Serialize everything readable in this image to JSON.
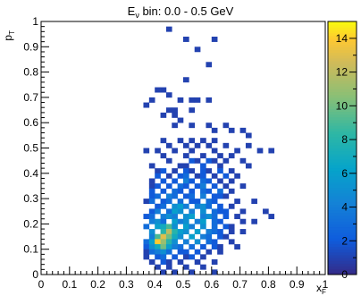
{
  "chart_data": {
    "type": "heatmap",
    "title_main": "E",
    "title_sub": "ν",
    "title_rest": " bin:  0.0 -  0.5 GeV",
    "xlabel_main": "x",
    "xlabel_sub": "F",
    "ylabel_main": "p",
    "ylabel_sub": "T",
    "xlim": [
      0,
      1
    ],
    "ylim": [
      0,
      1
    ],
    "x_ticks": [
      "0",
      "0.1",
      "0.2",
      "0.3",
      "0.4",
      "0.5",
      "0.6",
      "0.7",
      "0.8",
      "0.9",
      "1"
    ],
    "y_ticks": [
      "0",
      "0.1",
      "0.2",
      "0.3",
      "0.4",
      "0.5",
      "0.6",
      "0.7",
      "0.8",
      "0.9",
      "1"
    ],
    "z_range": [
      0,
      15
    ],
    "z_ticks": [
      "0",
      "2",
      "4",
      "6",
      "8",
      "10",
      "12",
      "14"
    ],
    "bin_size": 0.02,
    "cells": [
      [
        0.44,
        0.96,
        1
      ],
      [
        0.5,
        0.92,
        1
      ],
      [
        0.6,
        0.92,
        1
      ],
      [
        0.54,
        0.88,
        1
      ],
      [
        0.58,
        0.82,
        1
      ],
      [
        0.5,
        0.76,
        1
      ],
      [
        0.4,
        0.72,
        1
      ],
      [
        0.42,
        0.72,
        1
      ],
      [
        0.44,
        0.7,
        1
      ],
      [
        0.38,
        0.68,
        1
      ],
      [
        0.48,
        0.68,
        1
      ],
      [
        0.52,
        0.68,
        1
      ],
      [
        0.54,
        0.68,
        1
      ],
      [
        0.58,
        0.68,
        1
      ],
      [
        0.36,
        0.66,
        1
      ],
      [
        0.44,
        0.64,
        1
      ],
      [
        0.46,
        0.64,
        1
      ],
      [
        0.52,
        0.64,
        1
      ],
      [
        0.42,
        0.62,
        1
      ],
      [
        0.46,
        0.62,
        1
      ],
      [
        0.48,
        0.6,
        1
      ],
      [
        0.46,
        0.58,
        1
      ],
      [
        0.52,
        0.58,
        1
      ],
      [
        0.58,
        0.58,
        1
      ],
      [
        0.64,
        0.58,
        1
      ],
      [
        0.6,
        0.56,
        1
      ],
      [
        0.66,
        0.56,
        1
      ],
      [
        0.7,
        0.56,
        1
      ],
      [
        0.72,
        0.54,
        1
      ],
      [
        0.42,
        0.52,
        1
      ],
      [
        0.48,
        0.52,
        1
      ],
      [
        0.52,
        0.52,
        1
      ],
      [
        0.56,
        0.52,
        1
      ],
      [
        0.6,
        0.52,
        1
      ],
      [
        0.44,
        0.5,
        1
      ],
      [
        0.5,
        0.5,
        1
      ],
      [
        0.54,
        0.5,
        1
      ],
      [
        0.58,
        0.5,
        1
      ],
      [
        0.64,
        0.5,
        1
      ],
      [
        0.72,
        0.5,
        1
      ],
      [
        0.36,
        0.48,
        1
      ],
      [
        0.4,
        0.48,
        1
      ],
      [
        0.46,
        0.48,
        1
      ],
      [
        0.52,
        0.48,
        1
      ],
      [
        0.6,
        0.48,
        1
      ],
      [
        0.68,
        0.48,
        1
      ],
      [
        0.76,
        0.48,
        1
      ],
      [
        0.8,
        0.48,
        1
      ],
      [
        0.42,
        0.46,
        1
      ],
      [
        0.5,
        0.46,
        1
      ],
      [
        0.56,
        0.46,
        1
      ],
      [
        0.62,
        0.46,
        1
      ],
      [
        0.66,
        0.46,
        1
      ],
      [
        0.44,
        0.44,
        1
      ],
      [
        0.52,
        0.44,
        2
      ],
      [
        0.54,
        0.44,
        1
      ],
      [
        0.58,
        0.44,
        2
      ],
      [
        0.6,
        0.44,
        1
      ],
      [
        0.64,
        0.44,
        1
      ],
      [
        0.7,
        0.44,
        1
      ],
      [
        0.38,
        0.42,
        1
      ],
      [
        0.48,
        0.42,
        1
      ],
      [
        0.5,
        0.42,
        1
      ],
      [
        0.56,
        0.42,
        2
      ],
      [
        0.62,
        0.42,
        1
      ],
      [
        0.72,
        0.42,
        1
      ],
      [
        0.4,
        0.4,
        1
      ],
      [
        0.42,
        0.4,
        2
      ],
      [
        0.46,
        0.4,
        1
      ],
      [
        0.5,
        0.4,
        2
      ],
      [
        0.52,
        0.4,
        1
      ],
      [
        0.56,
        0.4,
        2
      ],
      [
        0.58,
        0.4,
        1
      ],
      [
        0.62,
        0.4,
        2
      ],
      [
        0.66,
        0.4,
        1
      ],
      [
        0.4,
        0.38,
        2
      ],
      [
        0.44,
        0.38,
        1
      ],
      [
        0.48,
        0.38,
        2
      ],
      [
        0.5,
        0.38,
        3
      ],
      [
        0.54,
        0.38,
        1
      ],
      [
        0.56,
        0.38,
        2
      ],
      [
        0.6,
        0.38,
        1
      ],
      [
        0.64,
        0.38,
        2
      ],
      [
        0.68,
        0.38,
        1
      ],
      [
        0.38,
        0.36,
        1
      ],
      [
        0.42,
        0.36,
        2
      ],
      [
        0.46,
        0.36,
        2
      ],
      [
        0.5,
        0.36,
        4
      ],
      [
        0.52,
        0.36,
        2
      ],
      [
        0.56,
        0.36,
        3
      ],
      [
        0.58,
        0.36,
        2
      ],
      [
        0.62,
        0.36,
        1
      ],
      [
        0.66,
        0.36,
        1
      ],
      [
        0.38,
        0.34,
        1
      ],
      [
        0.4,
        0.34,
        2
      ],
      [
        0.44,
        0.34,
        2
      ],
      [
        0.48,
        0.34,
        3
      ],
      [
        0.5,
        0.34,
        2
      ],
      [
        0.54,
        0.34,
        2
      ],
      [
        0.56,
        0.34,
        4
      ],
      [
        0.6,
        0.34,
        2
      ],
      [
        0.64,
        0.34,
        1
      ],
      [
        0.7,
        0.34,
        1
      ],
      [
        0.38,
        0.32,
        2
      ],
      [
        0.42,
        0.32,
        2
      ],
      [
        0.46,
        0.32,
        3
      ],
      [
        0.48,
        0.32,
        2
      ],
      [
        0.52,
        0.32,
        2
      ],
      [
        0.56,
        0.32,
        3
      ],
      [
        0.58,
        0.32,
        2
      ],
      [
        0.62,
        0.32,
        3
      ],
      [
        0.66,
        0.32,
        1
      ],
      [
        0.38,
        0.3,
        2
      ],
      [
        0.4,
        0.3,
        3
      ],
      [
        0.44,
        0.3,
        4
      ],
      [
        0.46,
        0.3,
        3
      ],
      [
        0.5,
        0.3,
        2
      ],
      [
        0.52,
        0.3,
        3
      ],
      [
        0.56,
        0.3,
        4
      ],
      [
        0.6,
        0.3,
        2
      ],
      [
        0.62,
        0.3,
        2
      ],
      [
        0.64,
        0.3,
        1
      ],
      [
        0.36,
        0.28,
        1
      ],
      [
        0.38,
        0.28,
        3
      ],
      [
        0.42,
        0.28,
        2
      ],
      [
        0.44,
        0.28,
        3
      ],
      [
        0.48,
        0.28,
        3
      ],
      [
        0.52,
        0.28,
        2
      ],
      [
        0.54,
        0.28,
        2
      ],
      [
        0.58,
        0.28,
        3
      ],
      [
        0.6,
        0.28,
        2
      ],
      [
        0.68,
        0.28,
        1
      ],
      [
        0.74,
        0.28,
        1
      ],
      [
        0.4,
        0.26,
        2
      ],
      [
        0.42,
        0.26,
        3
      ],
      [
        0.46,
        0.26,
        5
      ],
      [
        0.48,
        0.26,
        6
      ],
      [
        0.5,
        0.26,
        4
      ],
      [
        0.54,
        0.26,
        4
      ],
      [
        0.56,
        0.26,
        5
      ],
      [
        0.58,
        0.26,
        3
      ],
      [
        0.62,
        0.26,
        2
      ],
      [
        0.66,
        0.26,
        1
      ],
      [
        0.38,
        0.24,
        2
      ],
      [
        0.4,
        0.24,
        4
      ],
      [
        0.44,
        0.24,
        3
      ],
      [
        0.46,
        0.24,
        6
      ],
      [
        0.48,
        0.24,
        5
      ],
      [
        0.52,
        0.24,
        4
      ],
      [
        0.56,
        0.24,
        5
      ],
      [
        0.6,
        0.24,
        3
      ],
      [
        0.62,
        0.24,
        2
      ],
      [
        0.64,
        0.24,
        2
      ],
      [
        0.7,
        0.24,
        1
      ],
      [
        0.78,
        0.24,
        1
      ],
      [
        0.36,
        0.22,
        2
      ],
      [
        0.38,
        0.22,
        3
      ],
      [
        0.42,
        0.22,
        4
      ],
      [
        0.44,
        0.22,
        5
      ],
      [
        0.46,
        0.22,
        4
      ],
      [
        0.5,
        0.22,
        5
      ],
      [
        0.52,
        0.22,
        6
      ],
      [
        0.56,
        0.22,
        4
      ],
      [
        0.58,
        0.22,
        5
      ],
      [
        0.6,
        0.22,
        3
      ],
      [
        0.64,
        0.22,
        2
      ],
      [
        0.68,
        0.22,
        1
      ],
      [
        0.8,
        0.22,
        1
      ],
      [
        0.38,
        0.2,
        4
      ],
      [
        0.4,
        0.2,
        5
      ],
      [
        0.42,
        0.2,
        3
      ],
      [
        0.46,
        0.2,
        6
      ],
      [
        0.48,
        0.2,
        4
      ],
      [
        0.5,
        0.2,
        5
      ],
      [
        0.54,
        0.2,
        4
      ],
      [
        0.56,
        0.2,
        6
      ],
      [
        0.6,
        0.2,
        3
      ],
      [
        0.62,
        0.2,
        2
      ],
      [
        0.7,
        0.2,
        1
      ],
      [
        0.74,
        0.2,
        1
      ],
      [
        0.36,
        0.18,
        3
      ],
      [
        0.4,
        0.18,
        6
      ],
      [
        0.42,
        0.18,
        7
      ],
      [
        0.44,
        0.18,
        9
      ],
      [
        0.46,
        0.18,
        5
      ],
      [
        0.5,
        0.18,
        6
      ],
      [
        0.52,
        0.18,
        4
      ],
      [
        0.56,
        0.18,
        5
      ],
      [
        0.6,
        0.18,
        3
      ],
      [
        0.64,
        0.18,
        2
      ],
      [
        0.66,
        0.18,
        1
      ],
      [
        0.38,
        0.16,
        5
      ],
      [
        0.42,
        0.16,
        8
      ],
      [
        0.44,
        0.16,
        12
      ],
      [
        0.46,
        0.16,
        8
      ],
      [
        0.48,
        0.16,
        6
      ],
      [
        0.5,
        0.16,
        5
      ],
      [
        0.54,
        0.16,
        6
      ],
      [
        0.58,
        0.16,
        4
      ],
      [
        0.6,
        0.16,
        3
      ],
      [
        0.62,
        0.16,
        2
      ],
      [
        0.66,
        0.16,
        1
      ],
      [
        0.7,
        0.16,
        1
      ],
      [
        0.38,
        0.14,
        4
      ],
      [
        0.4,
        0.14,
        9
      ],
      [
        0.42,
        0.14,
        13
      ],
      [
        0.44,
        0.14,
        10
      ],
      [
        0.46,
        0.14,
        7
      ],
      [
        0.48,
        0.14,
        5
      ],
      [
        0.52,
        0.14,
        6
      ],
      [
        0.56,
        0.14,
        4
      ],
      [
        0.58,
        0.14,
        3
      ],
      [
        0.62,
        0.14,
        2
      ],
      [
        0.64,
        0.14,
        1
      ],
      [
        0.36,
        0.12,
        3
      ],
      [
        0.38,
        0.12,
        6
      ],
      [
        0.4,
        0.12,
        14
      ],
      [
        0.42,
        0.12,
        11
      ],
      [
        0.44,
        0.12,
        8
      ],
      [
        0.46,
        0.12,
        5
      ],
      [
        0.5,
        0.12,
        4
      ],
      [
        0.54,
        0.12,
        5
      ],
      [
        0.58,
        0.12,
        3
      ],
      [
        0.6,
        0.12,
        2
      ],
      [
        0.66,
        0.12,
        1
      ],
      [
        0.36,
        0.1,
        2
      ],
      [
        0.38,
        0.1,
        5
      ],
      [
        0.4,
        0.1,
        7
      ],
      [
        0.42,
        0.1,
        10
      ],
      [
        0.44,
        0.1,
        6
      ],
      [
        0.46,
        0.1,
        4
      ],
      [
        0.48,
        0.1,
        3
      ],
      [
        0.52,
        0.1,
        3
      ],
      [
        0.56,
        0.1,
        2
      ],
      [
        0.6,
        0.1,
        2
      ],
      [
        0.62,
        0.1,
        1
      ],
      [
        0.68,
        0.1,
        1
      ],
      [
        0.36,
        0.08,
        1
      ],
      [
        0.38,
        0.08,
        3
      ],
      [
        0.4,
        0.08,
        4
      ],
      [
        0.42,
        0.08,
        5
      ],
      [
        0.44,
        0.08,
        3
      ],
      [
        0.48,
        0.08,
        2
      ],
      [
        0.5,
        0.08,
        2
      ],
      [
        0.54,
        0.08,
        2
      ],
      [
        0.58,
        0.08,
        1
      ],
      [
        0.62,
        0.08,
        1
      ],
      [
        0.36,
        0.06,
        1
      ],
      [
        0.4,
        0.06,
        2
      ],
      [
        0.42,
        0.06,
        3
      ],
      [
        0.46,
        0.06,
        2
      ],
      [
        0.5,
        0.06,
        1
      ],
      [
        0.52,
        0.06,
        2
      ],
      [
        0.56,
        0.06,
        1
      ],
      [
        0.38,
        0.04,
        1
      ],
      [
        0.42,
        0.04,
        2
      ],
      [
        0.44,
        0.04,
        1
      ],
      [
        0.48,
        0.04,
        1
      ],
      [
        0.54,
        0.04,
        1
      ],
      [
        0.6,
        0.04,
        1
      ],
      [
        0.4,
        0.02,
        1
      ],
      [
        0.44,
        0.02,
        1
      ],
      [
        0.5,
        0.02,
        1
      ],
      [
        0.56,
        0.02,
        1
      ],
      [
        0.42,
        0,
        1
      ],
      [
        0.46,
        0,
        1
      ],
      [
        0.52,
        0,
        1
      ],
      [
        0.6,
        0,
        1
      ]
    ]
  }
}
